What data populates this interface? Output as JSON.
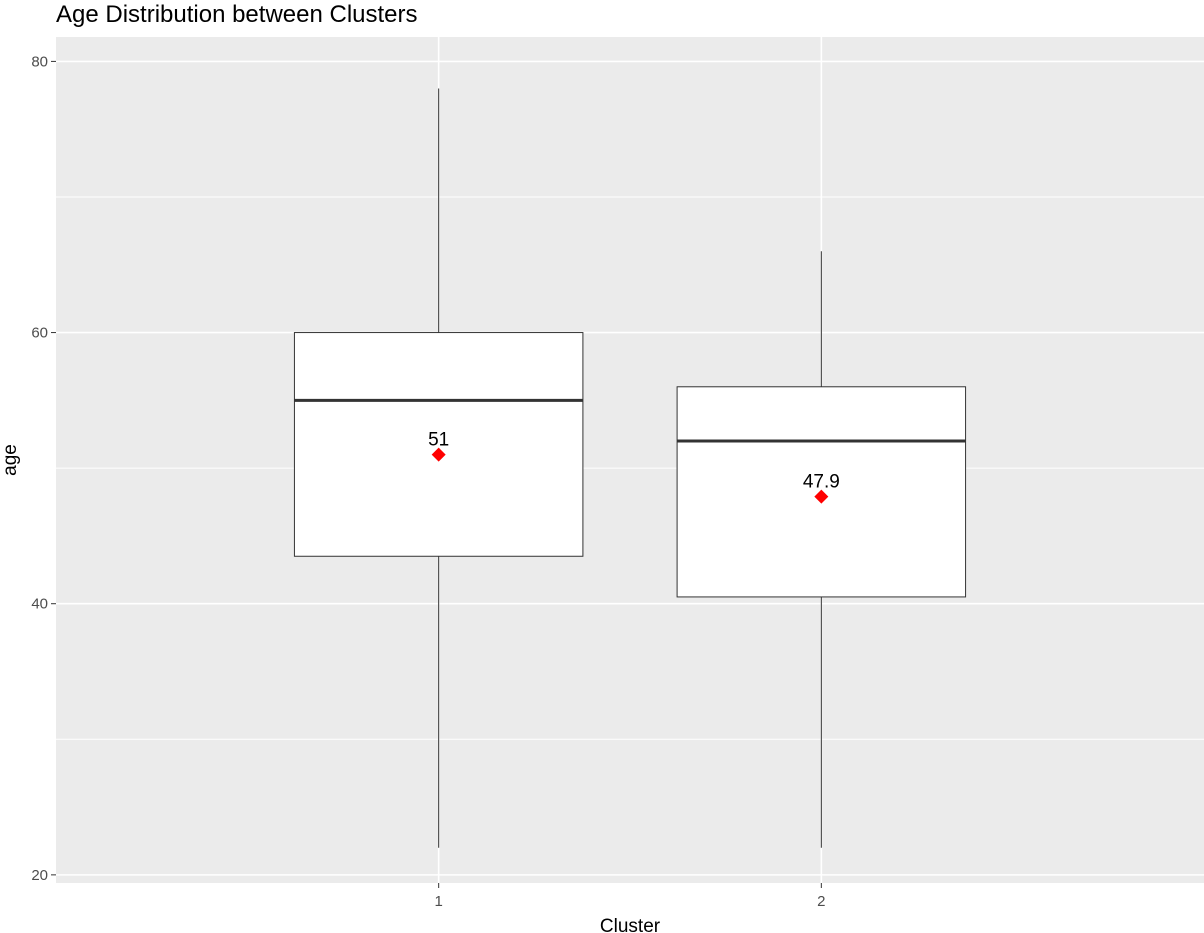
{
  "chart_data": {
    "type": "box",
    "title": "Age Distribution between Clusters",
    "xlabel": "Cluster",
    "ylabel": "age",
    "categories": [
      "1",
      "2"
    ],
    "ylim": [
      19.4,
      81.8
    ],
    "yticks": [
      20,
      40,
      60,
      80
    ],
    "grid": true,
    "legend": "none",
    "boxes": [
      {
        "category": "1",
        "min": 22,
        "q1": 43.5,
        "median": 55,
        "q3": 60,
        "max": 78,
        "mean": 51,
        "mean_label": "51"
      },
      {
        "category": "2",
        "min": 22,
        "q1": 40.5,
        "median": 52,
        "q3": 56,
        "max": 66,
        "mean": 47.9,
        "mean_label": "47.9"
      }
    ],
    "colors": {
      "panel": "#ebebeb",
      "grid": "#ffffff",
      "box_fill": "#ffffff",
      "box_stroke": "#333333",
      "mean_marker": "#ff0000"
    }
  }
}
